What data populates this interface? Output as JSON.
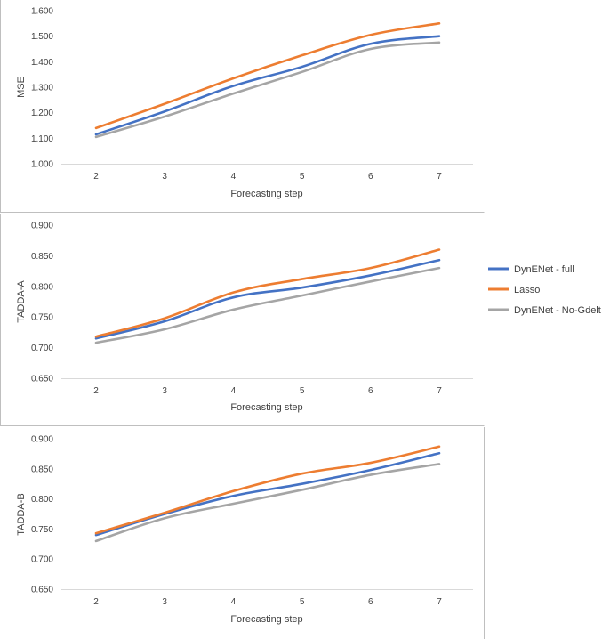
{
  "colors": {
    "full": "#4472C4",
    "lasso": "#ED7D31",
    "nogdelt": "#A5A5A5",
    "axis": "#D9D9D9",
    "frame": "#BFBFBF"
  },
  "legend": {
    "items": [
      {
        "label": "DynENet - full",
        "color": "#4472C4"
      },
      {
        "label": "Lasso",
        "color": "#ED7D31"
      },
      {
        "label": "DynENet - No-Gdelt",
        "color": "#A5A5A5"
      }
    ]
  },
  "chart_data": [
    {
      "type": "line",
      "title": "",
      "xlabel": "Forecasting step",
      "ylabel": "MSE",
      "categories": [
        "2",
        "3",
        "4",
        "5",
        "6",
        "7"
      ],
      "ylim": [
        1.0,
        1.6
      ],
      "yticks": [
        "1.000",
        "1.100",
        "1.200",
        "1.300",
        "1.400",
        "1.500",
        "1.600"
      ],
      "series": [
        {
          "name": "DynENet - full",
          "values": [
            1.115,
            1.205,
            1.305,
            1.38,
            1.47,
            1.5
          ]
        },
        {
          "name": "Lasso",
          "values": [
            1.14,
            1.235,
            1.335,
            1.425,
            1.505,
            1.55
          ]
        },
        {
          "name": "DynENet - No-Gdelt",
          "values": [
            1.105,
            1.185,
            1.275,
            1.36,
            1.45,
            1.475
          ]
        }
      ]
    },
    {
      "type": "line",
      "title": "",
      "xlabel": "Forecasting step",
      "ylabel": "TADDA-A",
      "categories": [
        "2",
        "3",
        "4",
        "5",
        "6",
        "7"
      ],
      "ylim": [
        0.65,
        0.9
      ],
      "yticks": [
        "0.650",
        "0.700",
        "0.750",
        "0.800",
        "0.850",
        "0.900"
      ],
      "series": [
        {
          "name": "DynENet - full",
          "values": [
            0.715,
            0.743,
            0.782,
            0.798,
            0.818,
            0.843
          ]
        },
        {
          "name": "Lasso",
          "values": [
            0.718,
            0.748,
            0.79,
            0.812,
            0.83,
            0.86
          ]
        },
        {
          "name": "DynENet - No-Gdelt",
          "values": [
            0.708,
            0.73,
            0.762,
            0.785,
            0.808,
            0.83
          ]
        }
      ]
    },
    {
      "type": "line",
      "title": "",
      "xlabel": "Forecasting step",
      "ylabel": "TADDA-B",
      "categories": [
        "2",
        "3",
        "4",
        "5",
        "6",
        "7"
      ],
      "ylim": [
        0.65,
        0.9
      ],
      "yticks": [
        "0.650",
        "0.700",
        "0.750",
        "0.800",
        "0.850",
        "0.900"
      ],
      "series": [
        {
          "name": "DynENet - full",
          "values": [
            0.74,
            0.775,
            0.805,
            0.825,
            0.848,
            0.876
          ]
        },
        {
          "name": "Lasso",
          "values": [
            0.743,
            0.777,
            0.813,
            0.842,
            0.86,
            0.887
          ]
        },
        {
          "name": "DynENet - No-Gdelt",
          "values": [
            0.73,
            0.768,
            0.792,
            0.815,
            0.84,
            0.858
          ]
        }
      ]
    }
  ]
}
